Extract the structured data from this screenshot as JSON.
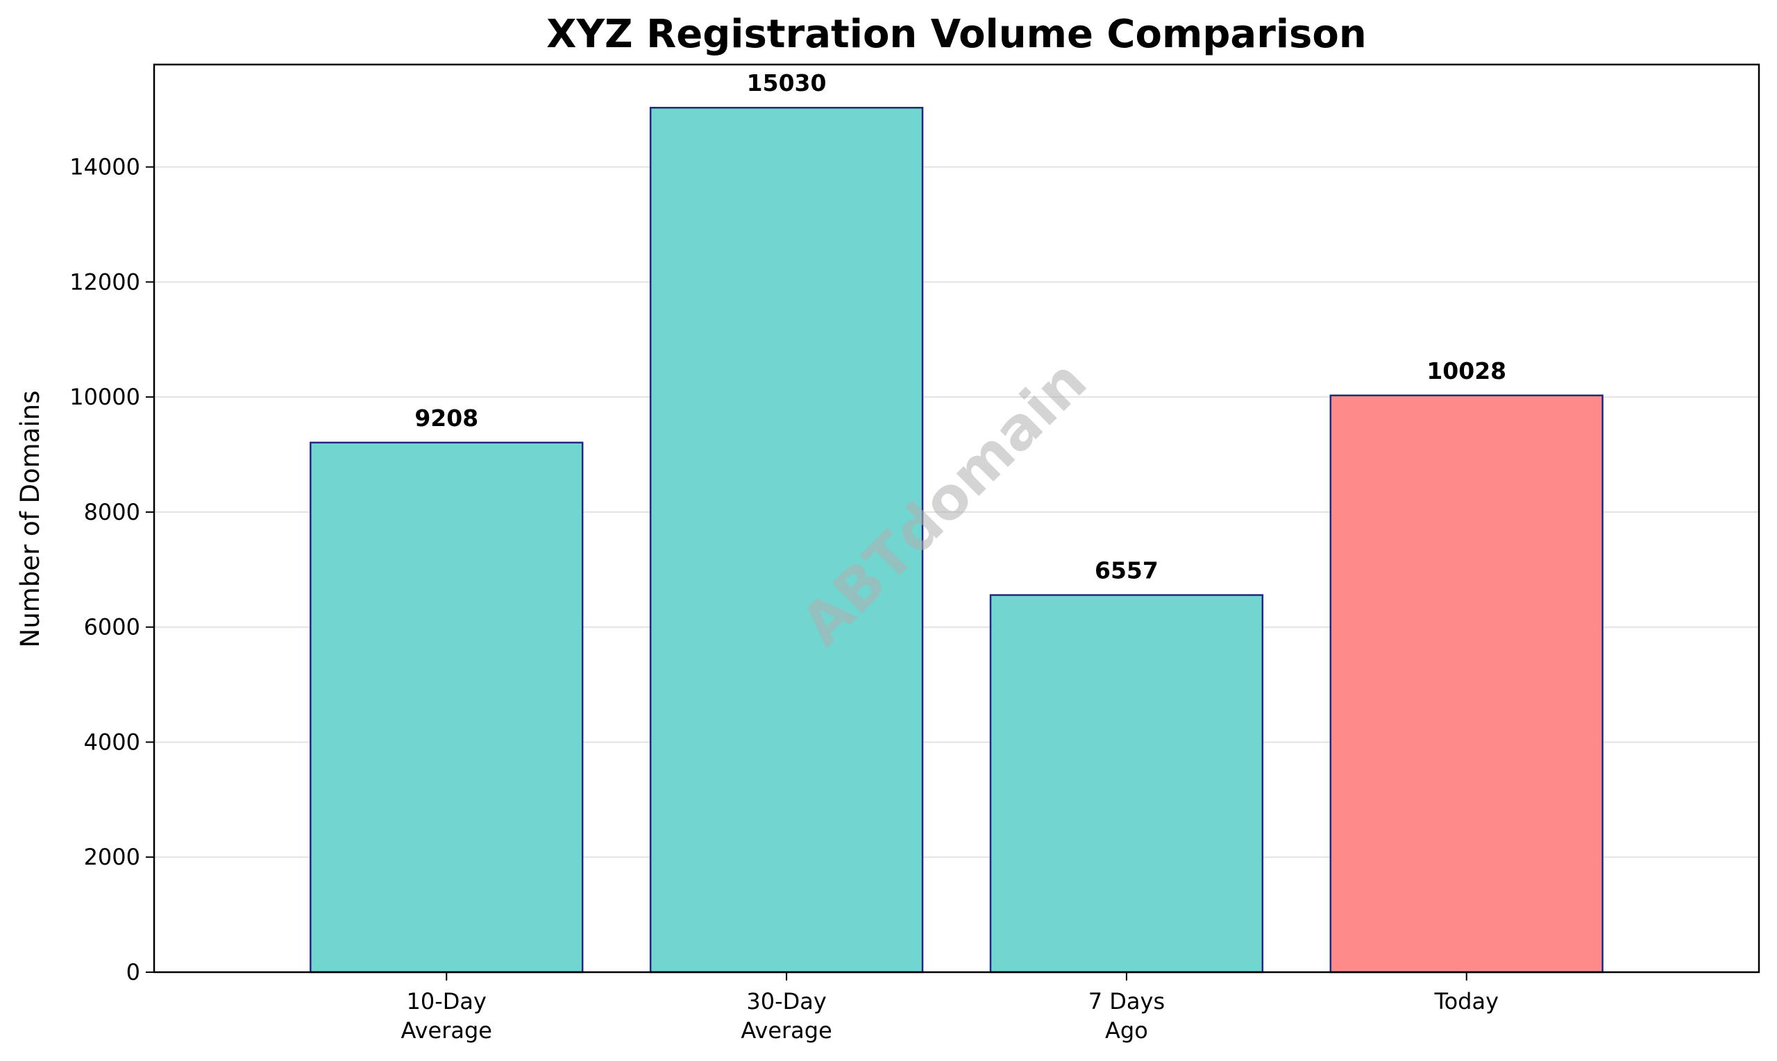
{
  "chart_data": {
    "type": "bar",
    "title": "XYZ Registration Volume Comparison",
    "xlabel": "",
    "ylabel": "Number of Domains",
    "categories": [
      [
        "10-Day",
        "Average"
      ],
      [
        "30-Day",
        "Average"
      ],
      [
        "7 Days",
        "Ago"
      ],
      [
        "Today"
      ]
    ],
    "values": [
      9208,
      15030,
      6557,
      10028
    ],
    "ylim": [
      0,
      15781
    ],
    "yticks": [
      0,
      2000,
      4000,
      6000,
      8000,
      10000,
      12000,
      14000
    ],
    "bar_colors": [
      "#72d6d0",
      "#72d6d0",
      "#72d6d0",
      "#ff8a8a"
    ],
    "bar_edge_color": "#1f2a7c",
    "grid": "y",
    "legend": "none",
    "watermark": "ABTdomain"
  }
}
